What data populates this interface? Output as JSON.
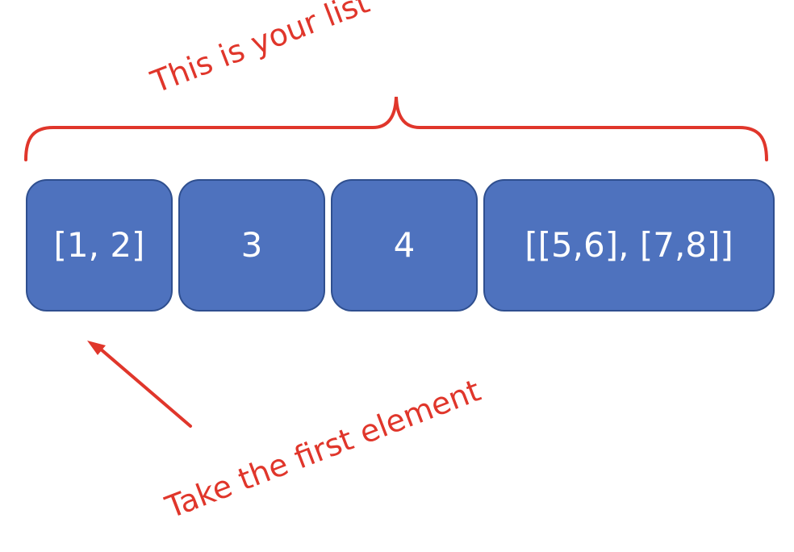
{
  "list_elements": [
    {
      "label": "[1, 2]"
    },
    {
      "label": "3"
    },
    {
      "label": "4"
    },
    {
      "label": "[[5,6], [7,8]]"
    }
  ],
  "annotations": {
    "list_label": "This is your list",
    "pointer_label": "Take the first element"
  },
  "colors": {
    "box_fill": "#4e72be",
    "box_border": "#2f4f8f",
    "box_text": "#ffffff",
    "annotation": "#e0362b"
  }
}
